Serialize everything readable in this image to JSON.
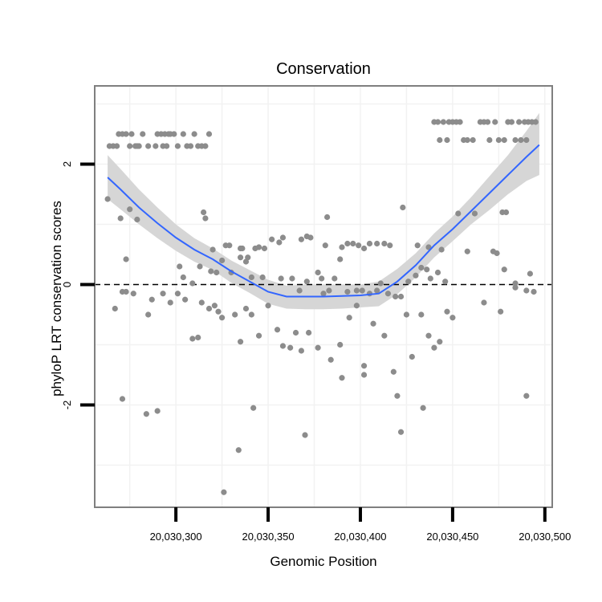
{
  "chart_data": {
    "type": "scatter",
    "title": "Conservation",
    "xlabel": "Genomic Position",
    "ylabel": "phyloP LRT conservation scores",
    "xlim": [
      20030256,
      20030504
    ],
    "ylim": [
      -3.7,
      3.3
    ],
    "x_ticks": [
      20030300,
      20030350,
      20030400,
      20030450,
      20030500
    ],
    "x_tick_labels": [
      "20,030,300",
      "20,030,350",
      "20,030,400",
      "20,030,450",
      "20,030,500"
    ],
    "y_ticks": [
      -2,
      0,
      2
    ],
    "y_tick_labels": [
      "-2",
      "0",
      "2"
    ],
    "reference_line": {
      "y": 0,
      "style": "dashed"
    },
    "colors": {
      "points": "#8c8c8c",
      "smooth_line": "#3366ff",
      "ribbon": "#d6d6d6",
      "panel_border": "#7f7f7f",
      "grid": "#f2f2f2"
    },
    "points": [
      [
        20030264,
        2.3
      ],
      [
        20030266,
        2.3
      ],
      [
        20030268,
        2.3
      ],
      [
        20030269,
        2.5
      ],
      [
        20030271,
        2.5
      ],
      [
        20030273,
        2.5
      ],
      [
        20030275,
        2.3
      ],
      [
        20030276,
        2.5
      ],
      [
        20030278,
        2.3
      ],
      [
        20030279,
        2.3
      ],
      [
        20030280,
        2.3
      ],
      [
        20030282,
        2.5
      ],
      [
        20030285,
        2.3
      ],
      [
        20030289,
        2.3
      ],
      [
        20030290,
        2.5
      ],
      [
        20030292,
        2.5
      ],
      [
        20030293,
        2.3
      ],
      [
        20030294,
        2.5
      ],
      [
        20030295,
        2.3
      ],
      [
        20030296,
        2.5
      ],
      [
        20030297,
        2.5
      ],
      [
        20030299,
        2.5
      ],
      [
        20030301,
        2.3
      ],
      [
        20030304,
        2.5
      ],
      [
        20030306,
        2.3
      ],
      [
        20030308,
        2.3
      ],
      [
        20030310,
        2.5
      ],
      [
        20030312,
        2.3
      ],
      [
        20030314,
        2.3
      ],
      [
        20030316,
        2.3
      ],
      [
        20030318,
        2.5
      ],
      [
        20030440,
        2.7
      ],
      [
        20030442,
        2.7
      ],
      [
        20030443,
        2.4
      ],
      [
        20030445,
        2.7
      ],
      [
        20030447,
        2.4
      ],
      [
        20030448,
        2.7
      ],
      [
        20030450,
        2.7
      ],
      [
        20030452,
        2.7
      ],
      [
        20030454,
        2.7
      ],
      [
        20030456,
        2.4
      ],
      [
        20030458,
        2.4
      ],
      [
        20030461,
        2.4
      ],
      [
        20030465,
        2.7
      ],
      [
        20030467,
        2.7
      ],
      [
        20030469,
        2.7
      ],
      [
        20030470,
        2.4
      ],
      [
        20030473,
        2.7
      ],
      [
        20030475,
        2.4
      ],
      [
        20030478,
        2.4
      ],
      [
        20030480,
        2.7
      ],
      [
        20030482,
        2.7
      ],
      [
        20030484,
        2.4
      ],
      [
        20030486,
        2.7
      ],
      [
        20030487,
        2.4
      ],
      [
        20030489,
        2.7
      ],
      [
        20030490,
        2.4
      ],
      [
        20030491,
        2.7
      ],
      [
        20030493,
        2.7
      ],
      [
        20030495,
        2.7
      ],
      [
        20030263,
        1.42
      ],
      [
        20030270,
        1.1
      ],
      [
        20030275,
        1.25
      ],
      [
        20030279,
        1.08
      ],
      [
        20030315,
        1.2
      ],
      [
        20030316,
        1.1
      ],
      [
        20030320,
        0.58
      ],
      [
        20030327,
        0.65
      ],
      [
        20030329,
        0.65
      ],
      [
        20030335,
        0.6
      ],
      [
        20030336,
        0.6
      ],
      [
        20030339,
        0.45
      ],
      [
        20030343,
        0.6
      ],
      [
        20030345,
        0.62
      ],
      [
        20030348,
        0.6
      ],
      [
        20030352,
        0.75
      ],
      [
        20030356,
        0.7
      ],
      [
        20030358,
        0.78
      ],
      [
        20030368,
        0.75
      ],
      [
        20030371,
        0.8
      ],
      [
        20030373,
        0.78
      ],
      [
        20030382,
        1.12
      ],
      [
        20030381,
        0.65
      ],
      [
        20030390,
        0.62
      ],
      [
        20030393,
        0.68
      ],
      [
        20030396,
        0.68
      ],
      [
        20030399,
        0.65
      ],
      [
        20030402,
        0.6
      ],
      [
        20030405,
        0.68
      ],
      [
        20030409,
        0.68
      ],
      [
        20030413,
        0.68
      ],
      [
        20030416,
        0.65
      ],
      [
        20030423,
        1.28
      ],
      [
        20030431,
        0.65
      ],
      [
        20030437,
        0.62
      ],
      [
        20030444,
        0.58
      ],
      [
        20030453,
        1.18
      ],
      [
        20030458,
        0.55
      ],
      [
        20030462,
        1.18
      ],
      [
        20030472,
        0.55
      ],
      [
        20030474,
        0.52
      ],
      [
        20030477,
        1.2
      ],
      [
        20030479,
        1.2
      ],
      [
        20030273,
        0.42
      ],
      [
        20030302,
        0.3
      ],
      [
        20030304,
        0.12
      ],
      [
        20030313,
        0.3
      ],
      [
        20030319,
        0.22
      ],
      [
        20030322,
        0.2
      ],
      [
        20030325,
        0.4
      ],
      [
        20030330,
        0.2
      ],
      [
        20030335,
        0.45
      ],
      [
        20030338,
        0.38
      ],
      [
        20030341,
        0.12
      ],
      [
        20030347,
        0.12
      ],
      [
        20030357,
        0.1
      ],
      [
        20030363,
        0.1
      ],
      [
        20030367,
        -0.1
      ],
      [
        20030371,
        0.05
      ],
      [
        20030377,
        0.2
      ],
      [
        20030379,
        0.1
      ],
      [
        20030383,
        -0.1
      ],
      [
        20030386,
        0.1
      ],
      [
        20030389,
        0.42
      ],
      [
        20030393,
        -0.12
      ],
      [
        20030398,
        -0.1
      ],
      [
        20030401,
        -0.1
      ],
      [
        20030405,
        -0.15
      ],
      [
        20030409,
        -0.1
      ],
      [
        20030411,
        0.02
      ],
      [
        20030415,
        -0.15
      ],
      [
        20030419,
        -0.2
      ],
      [
        20030422,
        -0.2
      ],
      [
        20030426,
        0.05
      ],
      [
        20030430,
        0.15
      ],
      [
        20030433,
        0.28
      ],
      [
        20030436,
        0.25
      ],
      [
        20030438,
        0.1
      ],
      [
        20030442,
        0.2
      ],
      [
        20030446,
        0.05
      ],
      [
        20030478,
        0.25
      ],
      [
        20030484,
        0.02
      ],
      [
        20030490,
        -0.1
      ],
      [
        20030492,
        0.18
      ],
      [
        20030494,
        -0.12
      ],
      [
        20030267,
        -0.4
      ],
      [
        20030271,
        -0.12
      ],
      [
        20030273,
        -0.12
      ],
      [
        20030277,
        -0.15
      ],
      [
        20030285,
        -0.5
      ],
      [
        20030287,
        -0.25
      ],
      [
        20030293,
        -0.15
      ],
      [
        20030297,
        -0.3
      ],
      [
        20030301,
        -0.15
      ],
      [
        20030305,
        -0.25
      ],
      [
        20030309,
        0.02
      ],
      [
        20030314,
        -0.3
      ],
      [
        20030318,
        -0.4
      ],
      [
        20030321,
        -0.35
      ],
      [
        20030323,
        -0.45
      ],
      [
        20030325,
        -0.55
      ],
      [
        20030332,
        -0.5
      ],
      [
        20030335,
        -0.95
      ],
      [
        20030338,
        -0.4
      ],
      [
        20030341,
        -0.5
      ],
      [
        20030345,
        -0.85
      ],
      [
        20030350,
        -0.35
      ],
      [
        20030355,
        -0.75
      ],
      [
        20030358,
        -1.02
      ],
      [
        20030362,
        -1.05
      ],
      [
        20030365,
        -0.8
      ],
      [
        20030368,
        -1.1
      ],
      [
        20030372,
        -0.8
      ],
      [
        20030377,
        -1.05
      ],
      [
        20030380,
        -0.15
      ],
      [
        20030384,
        -1.25
      ],
      [
        20030389,
        -1.0
      ],
      [
        20030394,
        -0.55
      ],
      [
        20030398,
        -0.35
      ],
      [
        20030402,
        -1.5
      ],
      [
        20030407,
        -0.65
      ],
      [
        20030413,
        -0.85
      ],
      [
        20030418,
        -1.45
      ],
      [
        20030425,
        -0.5
      ],
      [
        20030428,
        -1.2
      ],
      [
        20030433,
        -0.5
      ],
      [
        20030437,
        -0.85
      ],
      [
        20030440,
        -1.05
      ],
      [
        20030443,
        -0.95
      ],
      [
        20030447,
        -0.45
      ],
      [
        20030450,
        -0.55
      ],
      [
        20030467,
        -0.3
      ],
      [
        20030476,
        -0.45
      ],
      [
        20030484,
        -0.05
      ],
      [
        20030271,
        -1.9
      ],
      [
        20030284,
        -2.15
      ],
      [
        20030290,
        -2.1
      ],
      [
        20030312,
        -0.88
      ],
      [
        20030309,
        -0.9
      ],
      [
        20030334,
        -2.75
      ],
      [
        20030342,
        -2.05
      ],
      [
        20030370,
        -2.5
      ],
      [
        20030390,
        -1.55
      ],
      [
        20030402,
        -1.35
      ],
      [
        20030420,
        -1.85
      ],
      [
        20030422,
        -2.45
      ],
      [
        20030434,
        -2.05
      ],
      [
        20030490,
        -1.85
      ],
      [
        20030326,
        -3.45
      ]
    ],
    "smooth": [
      [
        20030263,
        1.78
      ],
      [
        20030270,
        1.58
      ],
      [
        20030280,
        1.28
      ],
      [
        20030290,
        1.02
      ],
      [
        20030300,
        0.78
      ],
      [
        20030310,
        0.58
      ],
      [
        20030320,
        0.42
      ],
      [
        20030330,
        0.22
      ],
      [
        20030340,
        0.05
      ],
      [
        20030350,
        -0.12
      ],
      [
        20030360,
        -0.2
      ],
      [
        20030370,
        -0.2
      ],
      [
        20030380,
        -0.2
      ],
      [
        20030390,
        -0.19
      ],
      [
        20030400,
        -0.18
      ],
      [
        20030410,
        -0.15
      ],
      [
        20030420,
        0.05
      ],
      [
        20030430,
        0.32
      ],
      [
        20030440,
        0.65
      ],
      [
        20030450,
        0.92
      ],
      [
        20030460,
        1.22
      ],
      [
        20030470,
        1.52
      ],
      [
        20030480,
        1.82
      ],
      [
        20030490,
        2.12
      ],
      [
        20030497,
        2.32
      ]
    ],
    "band_upper": [
      [
        20030263,
        2.15
      ],
      [
        20030270,
        1.92
      ],
      [
        20030280,
        1.58
      ],
      [
        20030290,
        1.28
      ],
      [
        20030300,
        1.0
      ],
      [
        20030310,
        0.77
      ],
      [
        20030320,
        0.6
      ],
      [
        20030330,
        0.4
      ],
      [
        20030340,
        0.24
      ],
      [
        20030350,
        0.08
      ],
      [
        20030360,
        -0.02
      ],
      [
        20030370,
        0.0
      ],
      [
        20030380,
        0.0
      ],
      [
        20030390,
        0.0
      ],
      [
        20030400,
        0.0
      ],
      [
        20030410,
        0.05
      ],
      [
        20030420,
        0.26
      ],
      [
        20030430,
        0.52
      ],
      [
        20030440,
        0.85
      ],
      [
        20030450,
        1.13
      ],
      [
        20030460,
        1.45
      ],
      [
        20030470,
        1.8
      ],
      [
        20030480,
        2.15
      ],
      [
        20030490,
        2.55
      ],
      [
        20030497,
        2.85
      ]
    ],
    "band_lower": [
      [
        20030263,
        1.42
      ],
      [
        20030270,
        1.25
      ],
      [
        20030280,
        1.0
      ],
      [
        20030290,
        0.77
      ],
      [
        20030300,
        0.56
      ],
      [
        20030310,
        0.38
      ],
      [
        20030320,
        0.24
      ],
      [
        20030330,
        0.03
      ],
      [
        20030340,
        -0.14
      ],
      [
        20030350,
        -0.32
      ],
      [
        20030360,
        -0.4
      ],
      [
        20030370,
        -0.41
      ],
      [
        20030380,
        -0.41
      ],
      [
        20030390,
        -0.4
      ],
      [
        20030400,
        -0.38
      ],
      [
        20030410,
        -0.36
      ],
      [
        20030420,
        -0.16
      ],
      [
        20030430,
        0.12
      ],
      [
        20030440,
        0.45
      ],
      [
        20030450,
        0.72
      ],
      [
        20030460,
        1.0
      ],
      [
        20030470,
        1.24
      ],
      [
        20030480,
        1.5
      ],
      [
        20030490,
        1.72
      ],
      [
        20030497,
        1.82
      ]
    ]
  }
}
